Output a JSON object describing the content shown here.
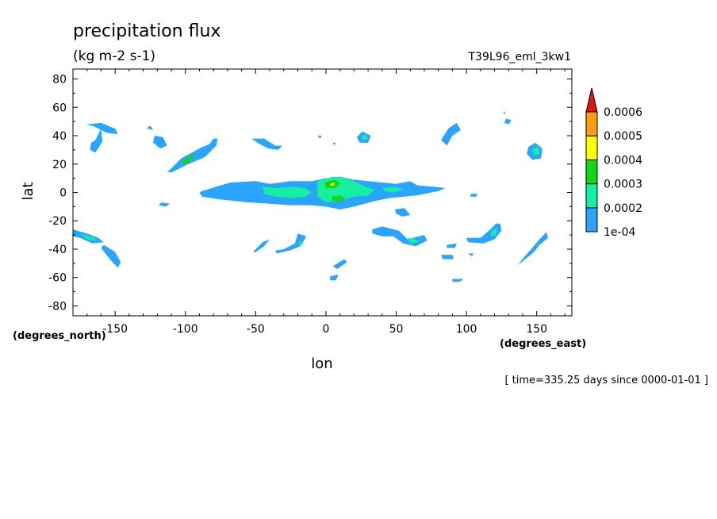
{
  "chart_data": {
    "type": "heatmap",
    "title": "precipitation flux",
    "subtitle": "(kg m-2 s-1)",
    "dataset_label": "T39L96_eml_3kw1",
    "xlabel": "lon",
    "ylabel": "lat",
    "x_units": "(degrees_east)",
    "y_units": "(degrees_north)",
    "time_label": "[ time=335.25 days since 0000-01-01 ]",
    "xlim": [
      -180,
      175
    ],
    "ylim": [
      -87,
      87
    ],
    "x_ticks": [
      -150,
      -100,
      -50,
      0,
      50,
      100,
      150
    ],
    "x_tick_labels": [
      "-150",
      "-100",
      "-50",
      "0",
      "50",
      "100",
      "150"
    ],
    "y_ticks": [
      80,
      60,
      40,
      20,
      0,
      -20,
      -40,
      -60,
      -80
    ],
    "y_tick_labels": [
      "80",
      "60",
      "40",
      "20",
      "0",
      "-20",
      "-40",
      "-60",
      "-80"
    ],
    "grid": false,
    "colorbar": {
      "levels": [
        "1e-04",
        "0.0002",
        "0.0003",
        "0.0004",
        "0.0005",
        "0.0006"
      ],
      "colors": [
        "#2aa5ff",
        "#14f0a0",
        "#14d714",
        "#ffff00",
        "#ff9b14",
        "#dc1414"
      ],
      "placement": "right"
    },
    "regions": [
      {
        "level": 0,
        "points": [
          [
            -164,
            37
          ],
          [
            -160,
            45
          ],
          [
            -159,
            36
          ],
          [
            -164,
            28
          ],
          [
            -168,
            30
          ],
          [
            -167,
            35
          ]
        ]
      },
      {
        "level": 0,
        "points": [
          [
            -171,
            48
          ],
          [
            -160,
            49
          ],
          [
            -150,
            45
          ],
          [
            -148,
            41
          ],
          [
            -156,
            42
          ],
          [
            -166,
            47
          ]
        ]
      },
      {
        "level": 0,
        "points": [
          [
            -126,
            47
          ],
          [
            -124,
            46
          ],
          [
            -123,
            44
          ],
          [
            -127,
            45
          ]
        ]
      },
      {
        "level": 0,
        "points": [
          [
            -122,
            40
          ],
          [
            -116,
            39
          ],
          [
            -113,
            33
          ],
          [
            -118,
            31
          ],
          [
            -123,
            35
          ]
        ]
      },
      {
        "level": 0,
        "points": [
          [
            -111,
            16
          ],
          [
            -103,
            24
          ],
          [
            -88,
            32
          ],
          [
            -83,
            34
          ],
          [
            -80,
            38
          ],
          [
            -77,
            38
          ],
          [
            -78,
            33
          ],
          [
            -86,
            25
          ],
          [
            -100,
            19
          ],
          [
            -110,
            14
          ],
          [
            -113,
            15
          ]
        ]
      },
      {
        "level": 2,
        "points": [
          [
            -104,
            21
          ],
          [
            -98,
            25
          ],
          [
            -93,
            27
          ],
          [
            -97,
            22
          ],
          [
            -102,
            20
          ]
        ]
      },
      {
        "level": 0,
        "points": [
          [
            -117,
            -7
          ],
          [
            -111,
            -8
          ],
          [
            -114,
            -10
          ],
          [
            -119,
            -9
          ]
        ]
      },
      {
        "level": 0,
        "points": [
          [
            -53,
            38
          ],
          [
            -44,
            38
          ],
          [
            -36,
            33
          ],
          [
            -31,
            33
          ],
          [
            -34,
            30
          ],
          [
            -41,
            31
          ],
          [
            -47,
            34
          ]
        ]
      },
      {
        "level": 0,
        "points": [
          [
            -6,
            40
          ],
          [
            -3,
            40
          ],
          [
            -4,
            38
          ]
        ]
      },
      {
        "level": 0,
        "points": [
          [
            5,
            35
          ],
          [
            7,
            35
          ],
          [
            6,
            33
          ]
        ]
      },
      {
        "level": 0,
        "points": [
          [
            -88,
            1
          ],
          [
            -75,
            5
          ],
          [
            -68,
            7
          ],
          [
            -50,
            8
          ],
          [
            -40,
            6
          ],
          [
            -25,
            8
          ],
          [
            -10,
            8
          ],
          [
            0,
            10
          ],
          [
            10,
            11
          ],
          [
            20,
            9
          ],
          [
            30,
            8
          ],
          [
            50,
            6
          ],
          [
            60,
            8
          ],
          [
            65,
            5
          ],
          [
            78,
            4
          ],
          [
            85,
            3
          ],
          [
            80,
            1
          ],
          [
            65,
            -2
          ],
          [
            55,
            -3
          ],
          [
            45,
            -4
          ],
          [
            35,
            -6
          ],
          [
            20,
            -10
          ],
          [
            10,
            -12
          ],
          [
            0,
            -10
          ],
          [
            -10,
            -9
          ],
          [
            -25,
            -9
          ],
          [
            -40,
            -8
          ],
          [
            -55,
            -7
          ],
          [
            -65,
            -6
          ],
          [
            -75,
            -5
          ],
          [
            -88,
            -3
          ],
          [
            -90,
            0
          ]
        ]
      },
      {
        "level": 1,
        "points": [
          [
            -45,
            4
          ],
          [
            -35,
            3
          ],
          [
            -25,
            4
          ],
          [
            -15,
            3
          ],
          [
            -10,
            0
          ],
          [
            -15,
            -3
          ],
          [
            -25,
            -4
          ],
          [
            -35,
            -3
          ],
          [
            -44,
            -1
          ]
        ]
      },
      {
        "level": 1,
        "points": [
          [
            -6,
            8
          ],
          [
            5,
            11
          ],
          [
            15,
            10
          ],
          [
            22,
            7
          ],
          [
            28,
            4
          ],
          [
            35,
            2
          ],
          [
            30,
            -2
          ],
          [
            20,
            -3
          ],
          [
            10,
            -6
          ],
          [
            0,
            -7
          ],
          [
            -6,
            -3
          ]
        ]
      },
      {
        "level": 1,
        "points": [
          [
            40,
            3
          ],
          [
            50,
            4
          ],
          [
            55,
            2
          ],
          [
            48,
            0
          ],
          [
            42,
            1
          ]
        ]
      },
      {
        "level": 2,
        "points": [
          [
            -1,
            7
          ],
          [
            6,
            9
          ],
          [
            10,
            7
          ],
          [
            7,
            3
          ],
          [
            0,
            3
          ]
        ]
      },
      {
        "level": 2,
        "points": [
          [
            4,
            -3
          ],
          [
            10,
            -2
          ],
          [
            14,
            -4
          ],
          [
            10,
            -7
          ],
          [
            5,
            -6
          ]
        ]
      },
      {
        "level": 3,
        "points": [
          [
            3,
            6
          ],
          [
            6,
            7
          ],
          [
            6,
            5
          ],
          [
            3,
            5
          ]
        ]
      },
      {
        "level": 0,
        "points": [
          [
            22,
            39
          ],
          [
            26,
            43
          ],
          [
            32,
            40
          ],
          [
            30,
            35
          ],
          [
            24,
            35
          ]
        ]
      },
      {
        "level": 1,
        "points": [
          [
            25,
            39
          ],
          [
            28,
            41
          ],
          [
            30,
            38
          ],
          [
            27,
            37
          ]
        ]
      },
      {
        "level": 0,
        "points": [
          [
            49,
            -12
          ],
          [
            56,
            -11
          ],
          [
            60,
            -16
          ],
          [
            54,
            -17
          ],
          [
            50,
            -15
          ]
        ]
      },
      {
        "level": 0,
        "points": [
          [
            33,
            -26
          ],
          [
            40,
            -24
          ],
          [
            52,
            -27
          ],
          [
            58,
            -33
          ],
          [
            70,
            -30
          ],
          [
            72,
            -34
          ],
          [
            64,
            -38
          ],
          [
            55,
            -36
          ],
          [
            48,
            -31
          ],
          [
            40,
            -31
          ],
          [
            33,
            -29
          ]
        ]
      },
      {
        "level": 1,
        "points": [
          [
            58,
            -32
          ],
          [
            64,
            -33
          ],
          [
            66,
            -35
          ],
          [
            60,
            -36
          ]
        ]
      },
      {
        "level": 0,
        "points": [
          [
            103,
            -1
          ],
          [
            108,
            -1
          ],
          [
            107,
            -3
          ],
          [
            103,
            -3
          ]
        ]
      },
      {
        "level": 0,
        "points": [
          [
            82,
            37
          ],
          [
            87,
            45
          ],
          [
            93,
            49
          ],
          [
            96,
            44
          ],
          [
            90,
            40
          ],
          [
            86,
            33
          ]
        ]
      },
      {
        "level": 0,
        "points": [
          [
            126,
            56
          ],
          [
            128,
            57
          ],
          [
            127,
            55
          ]
        ]
      },
      {
        "level": 0,
        "points": [
          [
            128,
            52
          ],
          [
            132,
            51
          ],
          [
            130,
            48
          ],
          [
            127,
            49
          ]
        ]
      },
      {
        "level": 0,
        "points": [
          [
            144,
            32
          ],
          [
            149,
            35
          ],
          [
            154,
            31
          ],
          [
            153,
            24
          ],
          [
            147,
            23
          ],
          [
            143,
            27
          ]
        ]
      },
      {
        "level": 1,
        "points": [
          [
            147,
            31
          ],
          [
            151,
            32
          ],
          [
            152,
            27
          ],
          [
            148,
            26
          ]
        ]
      },
      {
        "level": 0,
        "points": [
          [
            100,
            -32
          ],
          [
            110,
            -32
          ],
          [
            117,
            -26
          ],
          [
            121,
            -22
          ],
          [
            124,
            -22
          ],
          [
            125,
            -27
          ],
          [
            120,
            -33
          ],
          [
            112,
            -36
          ],
          [
            101,
            -35
          ]
        ]
      },
      {
        "level": 1,
        "points": [
          [
            118,
            -27
          ],
          [
            122,
            -25
          ],
          [
            121,
            -30
          ],
          [
            117,
            -31
          ]
        ]
      },
      {
        "level": 0,
        "points": [
          [
            86,
            -37
          ],
          [
            93,
            -36
          ],
          [
            92,
            -39
          ],
          [
            86,
            -39
          ]
        ]
      },
      {
        "level": 0,
        "points": [
          [
            82,
            -44
          ],
          [
            90,
            -44
          ],
          [
            91,
            -47
          ],
          [
            83,
            -47
          ]
        ]
      },
      {
        "level": 0,
        "points": [
          [
            101,
            -43
          ],
          [
            105,
            -43
          ],
          [
            104,
            -45
          ]
        ]
      },
      {
        "level": 0,
        "points": [
          [
            137,
            -51
          ],
          [
            148,
            -42
          ],
          [
            152,
            -37
          ],
          [
            158,
            -32
          ],
          [
            157,
            -28
          ],
          [
            152,
            -33
          ],
          [
            146,
            -40
          ],
          [
            139,
            -48
          ]
        ]
      },
      {
        "level": 0,
        "points": [
          [
            90,
            -61
          ],
          [
            98,
            -61
          ],
          [
            95,
            -63
          ],
          [
            90,
            -63
          ]
        ]
      },
      {
        "level": 0,
        "points": [
          [
            5,
            -52
          ],
          [
            13,
            -47
          ],
          [
            15,
            -49
          ],
          [
            8,
            -54
          ]
        ]
      },
      {
        "level": 0,
        "points": [
          [
            3,
            -59
          ],
          [
            9,
            -58
          ],
          [
            7,
            -62
          ],
          [
            3,
            -62
          ]
        ]
      },
      {
        "level": 0,
        "points": [
          [
            -52,
            -42
          ],
          [
            -45,
            -35
          ],
          [
            -40,
            -33
          ],
          [
            -44,
            -38
          ],
          [
            -50,
            -42
          ]
        ]
      },
      {
        "level": 0,
        "points": [
          [
            -35,
            -43
          ],
          [
            -26,
            -41
          ],
          [
            -18,
            -38
          ],
          [
            -14,
            -31
          ],
          [
            -20,
            -29
          ],
          [
            -22,
            -36
          ],
          [
            -30,
            -40
          ],
          [
            -36,
            -41
          ]
        ]
      },
      {
        "level": 1,
        "points": [
          [
            -20,
            -38
          ],
          [
            -16,
            -36
          ],
          [
            -18,
            -34
          ]
        ]
      },
      {
        "level": 0,
        "points": [
          [
            -180,
            -26
          ],
          [
            -170,
            -29
          ],
          [
            -162,
            -32
          ],
          [
            -158,
            -35
          ],
          [
            -166,
            -36
          ],
          [
            -175,
            -32
          ],
          [
            -180,
            -31
          ]
        ]
      },
      {
        "level": 1,
        "points": [
          [
            -175,
            -29
          ],
          [
            -165,
            -32
          ],
          [
            -163,
            -34
          ],
          [
            -170,
            -33
          ]
        ]
      },
      {
        "level": 0,
        "points": [
          [
            -158,
            -37
          ],
          [
            -150,
            -42
          ],
          [
            -146,
            -49
          ],
          [
            -148,
            -53
          ],
          [
            -153,
            -48
          ],
          [
            -157,
            -43
          ],
          [
            -160,
            -39
          ]
        ]
      }
    ]
  }
}
